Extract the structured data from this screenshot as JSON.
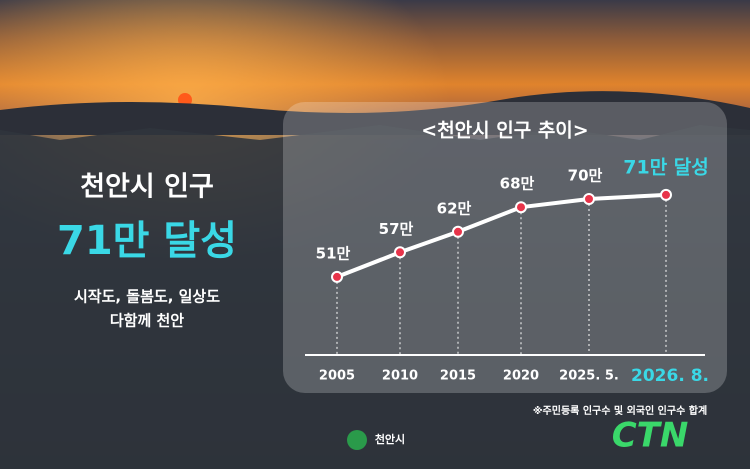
{
  "headline": {
    "title": "천안시 인구",
    "highlight": "71만 달성",
    "slogan_1": "시작도, 돌봄도, 일상도",
    "slogan_2": "다함께 천안"
  },
  "chart_data": {
    "type": "line",
    "title": "<천안시 인구 추이>",
    "categories": [
      "2005",
      "2010",
      "2015",
      "2020",
      "2025. 5.",
      "2026. 8."
    ],
    "values": [
      51,
      57,
      62,
      68,
      70,
      71
    ],
    "value_labels": [
      "51만",
      "57만",
      "62만",
      "68만",
      "70만",
      "71만 달성"
    ],
    "color": "#ffffff",
    "marker_color": "#e8344a",
    "highlight_color": "#3ad8e6"
  },
  "footer": {
    "note": "※주민등록 인구수 및 외국인 인구수 합계",
    "logo": "천안시",
    "brand": "CTN"
  }
}
